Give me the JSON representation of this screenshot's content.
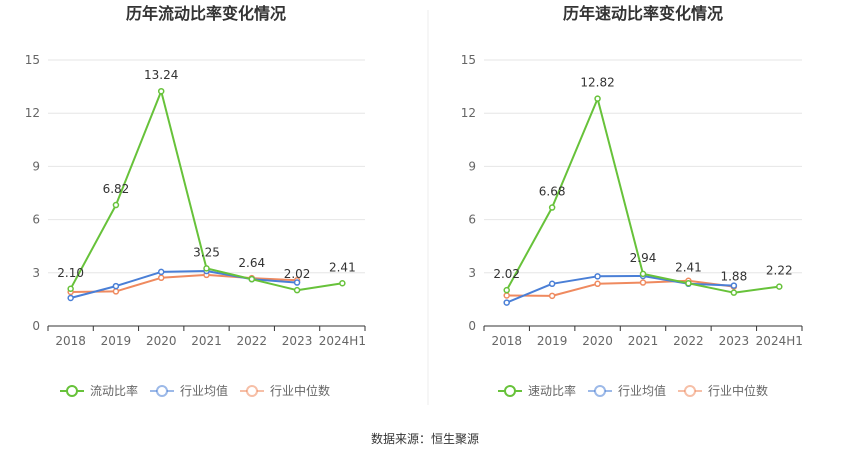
{
  "source": "数据来源：恒生聚源",
  "colors": {
    "main": "#67c23a",
    "avg": "#4a7fd6",
    "median": "#ef8a5f",
    "grid": "#e6e6e6",
    "axis": "#333333"
  },
  "chart_data": [
    {
      "type": "line",
      "title": "历年流动比率变化情况",
      "categories": [
        "2018",
        "2019",
        "2020",
        "2021",
        "2022",
        "2023",
        "2024H1"
      ],
      "ylim": [
        0,
        15
      ],
      "yticks": [
        "0",
        "3",
        "6",
        "9",
        "12",
        "15"
      ],
      "grid": true,
      "legend_position": "bottom",
      "series": [
        {
          "name": "流动比率",
          "values": [
            2.1,
            6.82,
            13.24,
            3.25,
            2.64,
            2.02,
            2.41
          ],
          "labels": [
            "2.10",
            "6.82",
            "13.24",
            "3.25",
            "2.64",
            "2.02",
            "2.41"
          ]
        },
        {
          "name": "行业均值",
          "values": [
            1.58,
            2.25,
            3.05,
            3.1,
            2.64,
            2.45,
            null
          ]
        },
        {
          "name": "行业中位数",
          "values": [
            1.92,
            1.95,
            2.72,
            2.88,
            2.7,
            2.58,
            null
          ]
        }
      ]
    },
    {
      "type": "line",
      "title": "历年速动比率变化情况",
      "categories": [
        "2018",
        "2019",
        "2020",
        "2021",
        "2022",
        "2023",
        "2024H1"
      ],
      "ylim": [
        0,
        15
      ],
      "yticks": [
        "0",
        "3",
        "6",
        "9",
        "12",
        "15"
      ],
      "grid": true,
      "legend_position": "bottom",
      "series": [
        {
          "name": "速动比率",
          "values": [
            2.02,
            6.68,
            12.82,
            2.94,
            2.41,
            1.88,
            2.22
          ],
          "labels": [
            "2.02",
            "6.68",
            "12.82",
            "2.94",
            "2.41",
            "1.88",
            "2.22"
          ]
        },
        {
          "name": "行业均值",
          "values": [
            1.32,
            2.38,
            2.8,
            2.82,
            2.38,
            2.28,
            null
          ]
        },
        {
          "name": "行业中位数",
          "values": [
            1.72,
            1.7,
            2.38,
            2.45,
            2.55,
            2.22,
            null
          ]
        }
      ]
    }
  ]
}
